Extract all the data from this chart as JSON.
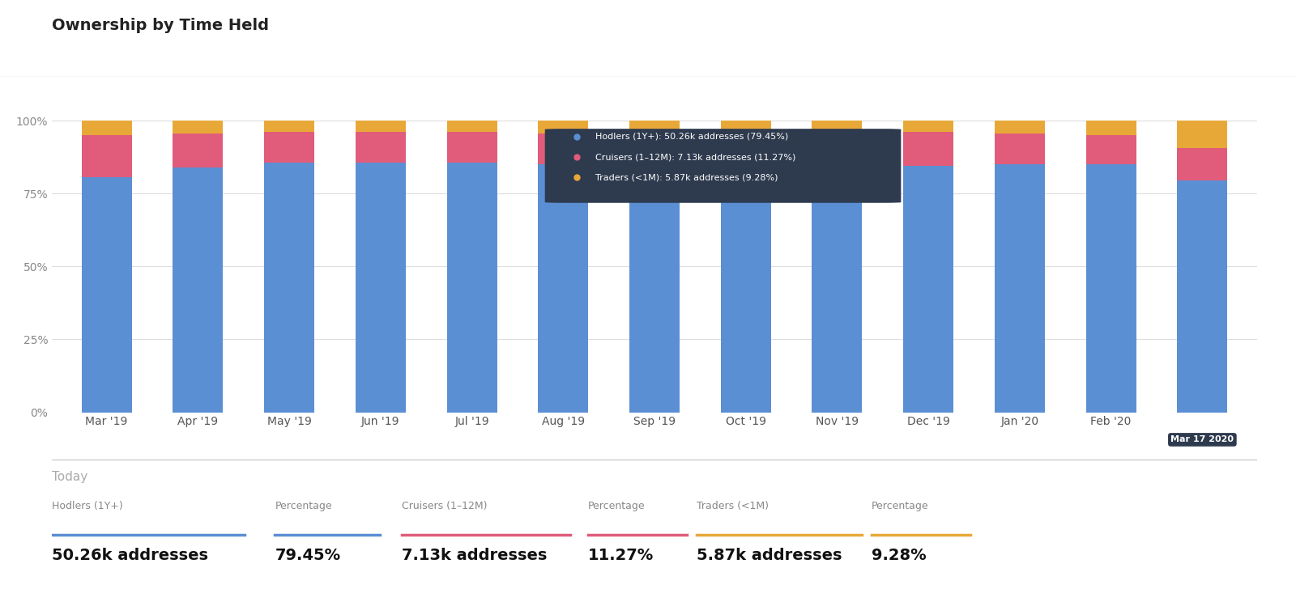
{
  "title": "Ownership by Time Held",
  "categories": [
    "Mar '19",
    "Apr '19",
    "May '19",
    "Jun '19",
    "Jul '19",
    "Aug '19",
    "Sep '19",
    "Oct '19",
    "Nov '19",
    "Dec '19",
    "Jan '20",
    "Feb '20",
    "Mar 17 2020"
  ],
  "hodlers": [
    80.5,
    84.0,
    85.5,
    85.5,
    85.5,
    85.0,
    85.0,
    85.0,
    85.0,
    84.5,
    85.0,
    85.0,
    79.45
  ],
  "cruisers": [
    14.5,
    11.5,
    10.5,
    10.5,
    10.5,
    10.5,
    10.5,
    10.5,
    10.5,
    11.5,
    10.5,
    10.0,
    11.27
  ],
  "traders": [
    5.0,
    4.5,
    4.0,
    4.0,
    4.0,
    4.5,
    4.5,
    4.5,
    4.5,
    4.0,
    4.5,
    5.0,
    9.28
  ],
  "hodler_color": "#5B8FD4",
  "cruiser_color": "#E05C7A",
  "trader_color": "#E8A838",
  "bg_color": "#FFFFFF",
  "grid_color": "#DDDDDD",
  "yticks": [
    0,
    25,
    50,
    75,
    100
  ],
  "ylim": [
    0,
    105
  ],
  "today_label": "Today",
  "hodler_label": "Hodlers (1Y+)",
  "cruiser_label": "Cruisers (1–12M)",
  "trader_label": "Traders (<1M)",
  "hodler_addresses": "50.26k addresses",
  "hodler_pct": "79.45%",
  "cruiser_addresses": "7.13k addresses",
  "cruiser_pct": "11.27%",
  "trader_addresses": "5.87k addresses",
  "trader_pct": "9.28%",
  "tooltip_text": [
    "Traders (<1M): 5.87k addresses (9.28%)",
    "Cruisers (1–12M): 7.13k addresses (11.27%)",
    "Hodlers (1Y+): 50.26k addresses (79.45%)"
  ],
  "tooltip_colors": [
    "#E8A838",
    "#E05C7A",
    "#5B8FD4"
  ],
  "tooltip_bg": "#2E3A4E",
  "tooltip_text_color": "#FFFFFF"
}
